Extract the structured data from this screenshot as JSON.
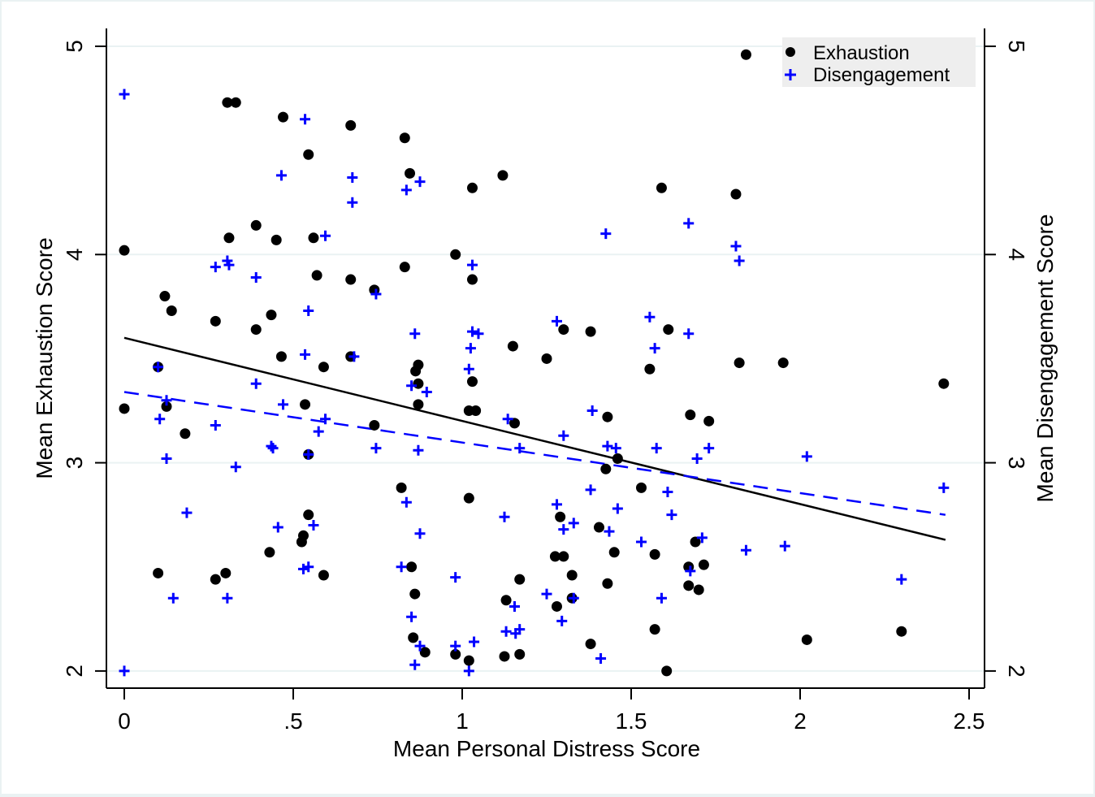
{
  "chart_data": {
    "type": "scatter",
    "title": "",
    "xlabel": "Mean Personal Distress Score",
    "ylabel": "Mean Exhaustion Score",
    "y2label": "Mean Disengagement Score",
    "xlim": [
      -0.05,
      2.55
    ],
    "ylim": [
      1.92,
      5.09
    ],
    "xticks": [
      0,
      0.5,
      1,
      1.5,
      2,
      2.5
    ],
    "xtick_labels": [
      "0",
      ".5",
      "1",
      "1.5",
      "2",
      "2.5"
    ],
    "yticks": [
      2,
      3,
      4,
      5
    ],
    "ytick_labels": [
      "2",
      "3",
      "4",
      "5"
    ],
    "y2ticks": [
      2,
      3,
      4,
      5
    ],
    "y2tick_labels": [
      "2",
      "3",
      "4",
      "5"
    ],
    "grid": "horizontal",
    "legend": {
      "position": "top-right",
      "entries": [
        "Exhaustion",
        "Disengagement"
      ]
    },
    "colors": {
      "exhaustion": "#000000",
      "disengagement": "#0000ff",
      "grid": "#eaf2f3",
      "legend_bg": "#eeeeee"
    },
    "series": [
      {
        "name": "Exhaustion",
        "marker": "circle",
        "points": [
          [
            0,
            4.02
          ],
          [
            0,
            3.26
          ],
          [
            0.305,
            4.73
          ],
          [
            0.33,
            4.73
          ],
          [
            0.47,
            4.66
          ],
          [
            0.67,
            4.62
          ],
          [
            0.83,
            4.56
          ],
          [
            0.545,
            4.48
          ],
          [
            0.845,
            4.39
          ],
          [
            1.12,
            4.38
          ],
          [
            1.03,
            4.32
          ],
          [
            1.59,
            4.32
          ],
          [
            1.81,
            4.29
          ],
          [
            1.84,
            4.96
          ],
          [
            0.39,
            4.14
          ],
          [
            0.31,
            4.08
          ],
          [
            0.45,
            4.07
          ],
          [
            0.56,
            4.08
          ],
          [
            0.83,
            3.94
          ],
          [
            0.98,
            4.0
          ],
          [
            0.57,
            3.9
          ],
          [
            0.67,
            3.88
          ],
          [
            1.03,
            3.88
          ],
          [
            0.12,
            3.8
          ],
          [
            0.74,
            3.83
          ],
          [
            0.14,
            3.73
          ],
          [
            0.435,
            3.71
          ],
          [
            0.27,
            3.68
          ],
          [
            0.39,
            3.64
          ],
          [
            1.3,
            3.64
          ],
          [
            1.38,
            3.63
          ],
          [
            1.61,
            3.64
          ],
          [
            0.465,
            3.51
          ],
          [
            0.67,
            3.51
          ],
          [
            0.1,
            3.46
          ],
          [
            1.15,
            3.56
          ],
          [
            1.25,
            3.5
          ],
          [
            0.59,
            3.46
          ],
          [
            0.87,
            3.47
          ],
          [
            0.862,
            3.44
          ],
          [
            1.82,
            3.48
          ],
          [
            1.95,
            3.48
          ],
          [
            2.425,
            3.38
          ],
          [
            0.87,
            3.38
          ],
          [
            1.03,
            3.39
          ],
          [
            1.555,
            3.45
          ],
          [
            0.535,
            3.28
          ],
          [
            0.87,
            3.28
          ],
          [
            0.125,
            3.27
          ],
          [
            1.02,
            3.25
          ],
          [
            1.04,
            3.25
          ],
          [
            1.43,
            3.22
          ],
          [
            1.675,
            3.23
          ],
          [
            1.73,
            3.2
          ],
          [
            0.74,
            3.18
          ],
          [
            1.155,
            3.19
          ],
          [
            0.18,
            3.14
          ],
          [
            0.545,
            3.04
          ],
          [
            1.46,
            3.02
          ],
          [
            1.425,
            2.97
          ],
          [
            0.82,
            2.88
          ],
          [
            1.53,
            2.88
          ],
          [
            1.02,
            2.83
          ],
          [
            0.545,
            2.75
          ],
          [
            1.29,
            2.74
          ],
          [
            1.405,
            2.69
          ],
          [
            0.53,
            2.65
          ],
          [
            0.525,
            2.62
          ],
          [
            1.69,
            2.62
          ],
          [
            0.43,
            2.57
          ],
          [
            1.45,
            2.57
          ],
          [
            1.275,
            2.55
          ],
          [
            1.3,
            2.55
          ],
          [
            1.57,
            2.56
          ],
          [
            1.67,
            2.5
          ],
          [
            1.715,
            2.51
          ],
          [
            0.85,
            2.5
          ],
          [
            0.1,
            2.47
          ],
          [
            0.3,
            2.47
          ],
          [
            0.27,
            2.44
          ],
          [
            0.59,
            2.46
          ],
          [
            1.325,
            2.46
          ],
          [
            1.17,
            2.44
          ],
          [
            1.43,
            2.42
          ],
          [
            0.86,
            2.37
          ],
          [
            1.67,
            2.41
          ],
          [
            1.7,
            2.39
          ],
          [
            1.325,
            2.35
          ],
          [
            1.13,
            2.34
          ],
          [
            1.28,
            2.31
          ],
          [
            1.57,
            2.2
          ],
          [
            2.3,
            2.19
          ],
          [
            0.855,
            2.16
          ],
          [
            2.02,
            2.15
          ],
          [
            1.38,
            2.13
          ],
          [
            0.89,
            2.09
          ],
          [
            0.98,
            2.08
          ],
          [
            1.17,
            2.08
          ],
          [
            1.125,
            2.07
          ],
          [
            1.02,
            2.05
          ],
          [
            1.605,
            2.0
          ]
        ],
        "fit_line": {
          "style": "solid",
          "from": [
            0,
            3.6
          ],
          "to": [
            2.43,
            2.63
          ]
        }
      },
      {
        "name": "Disengagement",
        "marker": "plus",
        "points": [
          [
            0,
            4.77
          ],
          [
            0.535,
            4.65
          ],
          [
            0.465,
            4.38
          ],
          [
            0.675,
            4.37
          ],
          [
            0.875,
            4.35
          ],
          [
            0.835,
            4.31
          ],
          [
            0.675,
            4.25
          ],
          [
            1.67,
            4.15
          ],
          [
            1.425,
            4.1
          ],
          [
            0.595,
            4.09
          ],
          [
            1.81,
            4.04
          ],
          [
            1.82,
            3.97
          ],
          [
            0.305,
            3.97
          ],
          [
            0.31,
            3.95
          ],
          [
            0.27,
            3.94
          ],
          [
            1.03,
            3.95
          ],
          [
            0.39,
            3.89
          ],
          [
            0.745,
            3.81
          ],
          [
            0.545,
            3.73
          ],
          [
            1.555,
            3.7
          ],
          [
            1.28,
            3.68
          ],
          [
            0.86,
            3.62
          ],
          [
            1.03,
            3.63
          ],
          [
            1.048,
            3.62
          ],
          [
            1.67,
            3.62
          ],
          [
            1.57,
            3.55
          ],
          [
            1.025,
            3.55
          ],
          [
            0.535,
            3.52
          ],
          [
            0.68,
            3.51
          ],
          [
            0.1,
            3.46
          ],
          [
            1.02,
            3.45
          ],
          [
            0.39,
            3.38
          ],
          [
            0.85,
            3.37
          ],
          [
            0.895,
            3.34
          ],
          [
            0.125,
            3.3
          ],
          [
            0.47,
            3.28
          ],
          [
            1.385,
            3.25
          ],
          [
            0.105,
            3.21
          ],
          [
            1.135,
            3.21
          ],
          [
            0.595,
            3.21
          ],
          [
            0.27,
            3.18
          ],
          [
            0.575,
            3.15
          ],
          [
            1.3,
            3.13
          ],
          [
            0.44,
            3.07
          ],
          [
            0.435,
            3.08
          ],
          [
            0.745,
            3.07
          ],
          [
            1.43,
            3.08
          ],
          [
            1.455,
            3.07
          ],
          [
            1.575,
            3.07
          ],
          [
            1.73,
            3.07
          ],
          [
            1.17,
            3.07
          ],
          [
            0.87,
            3.06
          ],
          [
            0.545,
            3.04
          ],
          [
            1.695,
            3.02
          ],
          [
            2.02,
            3.03
          ],
          [
            0.125,
            3.02
          ],
          [
            0.33,
            2.98
          ],
          [
            2.425,
            2.88
          ],
          [
            1.38,
            2.87
          ],
          [
            1.608,
            2.86
          ],
          [
            1.28,
            2.8
          ],
          [
            0.835,
            2.81
          ],
          [
            0.185,
            2.76
          ],
          [
            1.46,
            2.78
          ],
          [
            1.62,
            2.75
          ],
          [
            1.125,
            2.74
          ],
          [
            1.33,
            2.71
          ],
          [
            0.56,
            2.7
          ],
          [
            0.455,
            2.69
          ],
          [
            1.3,
            2.68
          ],
          [
            1.435,
            2.67
          ],
          [
            0.875,
            2.66
          ],
          [
            1.71,
            2.64
          ],
          [
            1.53,
            2.62
          ],
          [
            1.84,
            2.58
          ],
          [
            1.955,
            2.6
          ],
          [
            0.82,
            2.5
          ],
          [
            0.545,
            2.5
          ],
          [
            0.53,
            2.49
          ],
          [
            1.675,
            2.48
          ],
          [
            0.98,
            2.45
          ],
          [
            2.3,
            2.44
          ],
          [
            1.25,
            2.37
          ],
          [
            0.145,
            2.35
          ],
          [
            0.305,
            2.35
          ],
          [
            1.33,
            2.35
          ],
          [
            1.59,
            2.35
          ],
          [
            1.155,
            2.31
          ],
          [
            0.85,
            2.26
          ],
          [
            1.295,
            2.24
          ],
          [
            1.17,
            2.2
          ],
          [
            1.13,
            2.19
          ],
          [
            1.158,
            2.18
          ],
          [
            1.035,
            2.14
          ],
          [
            0.875,
            2.12
          ],
          [
            0.98,
            2.12
          ],
          [
            1.41,
            2.06
          ],
          [
            0.86,
            2.03
          ],
          [
            0,
            2.0
          ],
          [
            1.02,
            2.0
          ]
        ],
        "fit_line": {
          "style": "dashed",
          "from": [
            0,
            3.34
          ],
          "to": [
            2.43,
            2.75
          ]
        }
      }
    ]
  }
}
